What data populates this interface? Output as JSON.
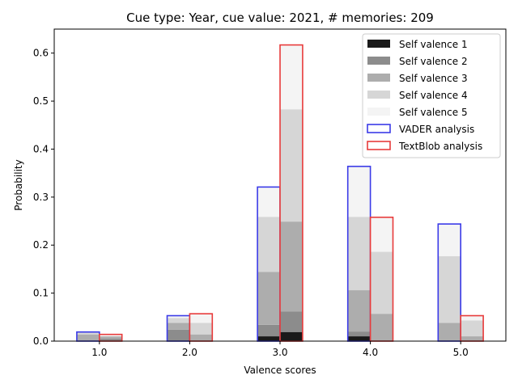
{
  "chart_data": {
    "type": "bar",
    "title": "Cue type: Year, cue value: 2021, # memories: 209",
    "xlabel": "Valence scores",
    "ylabel": "Probability",
    "x": [
      1.0,
      2.0,
      3.0,
      4.0,
      5.0
    ],
    "x_tick_labels": [
      "1.0",
      "2.0",
      "3.0",
      "4.0",
      "5.0"
    ],
    "y_ticks": [
      "0.0",
      "0.1",
      "0.2",
      "0.3",
      "0.4",
      "0.5",
      "0.6"
    ],
    "ylim": [
      0,
      0.65
    ],
    "xlim": [
      0.5,
      5.5
    ],
    "legend_position": "top-right",
    "series_groups": [
      {
        "group": "VADER analysis",
        "name": "VADER analysis",
        "edge_color": "#3b3be8",
        "total": [
          0.019,
          0.053,
          0.321,
          0.364,
          0.244
        ],
        "stacks": [
          {
            "name": "Self valence 1",
            "values": [
              0.0,
              0.0,
              0.01,
              0.01,
              0.0
            ]
          },
          {
            "name": "Self valence 2",
            "values": [
              0.0,
              0.024,
              0.024,
              0.01,
              0.0
            ]
          },
          {
            "name": "Self valence 3",
            "values": [
              0.014,
              0.014,
              0.11,
              0.086,
              0.038
            ]
          },
          {
            "name": "Self valence 4",
            "values": [
              0.005,
              0.01,
              0.115,
              0.153,
              0.139
            ]
          },
          {
            "name": "Self valence 5",
            "values": [
              0.0,
              0.005,
              0.062,
              0.105,
              0.067
            ]
          }
        ]
      },
      {
        "group": "TextBlob analysis",
        "name": "TextBlob analysis",
        "edge_color": "#e83b3b",
        "total": [
          0.014,
          0.057,
          0.617,
          0.258,
          0.053
        ],
        "stacks": [
          {
            "name": "Self valence 1",
            "values": [
              0.0,
              0.0,
              0.019,
              0.0,
              0.0
            ]
          },
          {
            "name": "Self valence 2",
            "values": [
              0.005,
              0.0,
              0.043,
              0.0,
              0.0
            ]
          },
          {
            "name": "Self valence 3",
            "values": [
              0.005,
              0.014,
              0.187,
              0.057,
              0.01
            ]
          },
          {
            "name": "Self valence 4",
            "values": [
              0.0,
              0.024,
              0.234,
              0.129,
              0.033
            ]
          },
          {
            "name": "Self valence 5",
            "values": [
              0.004,
              0.019,
              0.134,
              0.072,
              0.01
            ]
          }
        ]
      }
    ],
    "legend": [
      {
        "label": "Self valence 1",
        "kind": "fill",
        "color": "#1a1a1a"
      },
      {
        "label": "Self valence 2",
        "kind": "fill",
        "color": "#8c8c8c"
      },
      {
        "label": "Self valence 3",
        "kind": "fill",
        "color": "#adadad"
      },
      {
        "label": "Self valence 4",
        "kind": "fill",
        "color": "#d6d6d6"
      },
      {
        "label": "Self valence 5",
        "kind": "fill",
        "color": "#f4f4f4"
      },
      {
        "label": "VADER analysis",
        "kind": "outline",
        "color": "#3b3be8"
      },
      {
        "label": "TextBlob analysis",
        "kind": "outline",
        "color": "#e83b3b"
      }
    ],
    "stack_colors": [
      "#1a1a1a",
      "#8c8c8c",
      "#adadad",
      "#d6d6d6",
      "#f4f4f4"
    ]
  }
}
